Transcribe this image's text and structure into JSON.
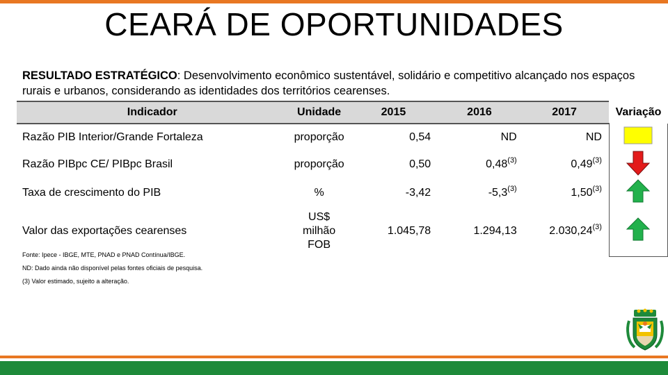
{
  "title": "CEARÁ DE OPORTUNIDADES",
  "result": {
    "label": "RESULTADO ESTRATÉGICO",
    "text": ": Desenvolvimento econômico sustentável, solidário e competitivo alcançado nos espaços rurais e urbanos, considerando as identidades dos territórios cearenses."
  },
  "table": {
    "headers": {
      "indicador": "Indicador",
      "unidade": "Unidade",
      "y2015": "2015",
      "y2016": "2016",
      "y2017": "2017",
      "variacao": "Variação"
    },
    "rows": [
      {
        "indicador": "Razão PIB Interior/Grande Fortaleza",
        "unidade": "proporção",
        "y2015": "0,54",
        "y2016": "ND",
        "y2016_sup": "",
        "y2017": "ND",
        "y2017_sup": "",
        "variacao": "neutral",
        "variacao_color": "#ffff00"
      },
      {
        "indicador": "Razão PIBpc CE/ PIBpc Brasil",
        "unidade": "proporção",
        "y2015": "0,50",
        "y2016": "0,48",
        "y2016_sup": "(3)",
        "y2017": "0,49",
        "y2017_sup": "(3)",
        "variacao": "down-arrow",
        "variacao_color": "#e31b1b"
      },
      {
        "indicador": "Taxa de crescimento do PIB",
        "unidade": "%",
        "y2015": "-3,42",
        "y2016": "-5,3",
        "y2016_sup": "(3)",
        "y2017": "1,50",
        "y2017_sup": "(3)",
        "variacao": "up-arrow",
        "variacao_color": "#22b14c"
      },
      {
        "indicador": "Valor das exportações cearenses",
        "unidade_lines": [
          "US$",
          "milhão",
          "FOB"
        ],
        "y2015": "1.045,78",
        "y2016": "1.294,13",
        "y2016_sup": "",
        "y2017": "2.030,24",
        "y2017_sup": "(3)",
        "variacao": "up-arrow",
        "variacao_color": "#22b14c"
      }
    ]
  },
  "footnotes": [
    "Fonte: Ipece - IBGE, MTE, PNAD e PNAD Contínua/IBGE.",
    "ND: Dado ainda não disponível pelas fontes oficiais de pesquisa.",
    "(3) Valor estimado, sujeito a alteração."
  ],
  "colors": {
    "orange": "#e87722",
    "green": "#1e8a3a",
    "header_gray": "#d9d9d9"
  },
  "emblem": {
    "icon": "ceara-coat-of-arms-icon"
  }
}
